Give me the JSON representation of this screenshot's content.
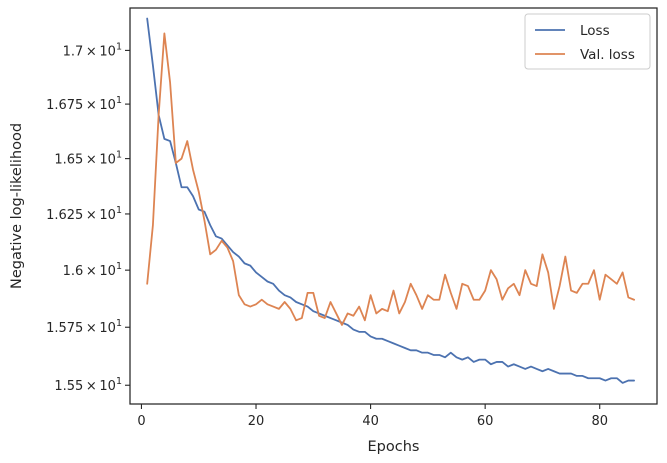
{
  "chart_data": {
    "type": "line",
    "xlabel": "Epochs",
    "ylabel": "Negative log-likelihood",
    "xlim": [
      -2,
      90
    ],
    "ylim": [
      15.42,
      17.2
    ],
    "y_scale": "log",
    "grid": false,
    "legend_position": "top-right",
    "x_ticks": [
      {
        "value": 0,
        "label": "0"
      },
      {
        "value": 20,
        "label": "20"
      },
      {
        "value": 40,
        "label": "40"
      },
      {
        "value": 60,
        "label": "60"
      },
      {
        "value": 80,
        "label": "80"
      }
    ],
    "y_ticks": [
      {
        "value": 15.5,
        "mantissa": "1.55",
        "times": "×",
        "base": "10",
        "exp": "1"
      },
      {
        "value": 15.75,
        "mantissa": "1.575",
        "times": "×",
        "base": "10",
        "exp": "1"
      },
      {
        "value": 16.0,
        "mantissa": "1.6",
        "times": "×",
        "base": "10",
        "exp": "1"
      },
      {
        "value": 16.25,
        "mantissa": "1.625",
        "times": "×",
        "base": "10",
        "exp": "1"
      },
      {
        "value": 16.5,
        "mantissa": "1.65",
        "times": "×",
        "base": "10",
        "exp": "1"
      },
      {
        "value": 16.75,
        "mantissa": "1.675",
        "times": "×",
        "base": "10",
        "exp": "1"
      },
      {
        "value": 17.0,
        "mantissa": "1.7",
        "times": "×",
        "base": "10",
        "exp": "1"
      }
    ],
    "x": [
      1,
      2,
      3,
      4,
      5,
      6,
      7,
      8,
      9,
      10,
      11,
      12,
      13,
      14,
      15,
      16,
      17,
      18,
      19,
      20,
      21,
      22,
      23,
      24,
      25,
      26,
      27,
      28,
      29,
      30,
      31,
      32,
      33,
      34,
      35,
      36,
      37,
      38,
      39,
      40,
      41,
      42,
      43,
      44,
      45,
      46,
      47,
      48,
      49,
      50,
      51,
      52,
      53,
      54,
      55,
      56,
      57,
      58,
      59,
      60,
      61,
      62,
      63,
      64,
      65,
      66,
      67,
      68,
      69,
      70,
      71,
      72,
      73,
      74,
      75,
      76,
      77,
      78,
      79,
      80,
      81,
      82,
      83,
      84,
      85,
      86
    ],
    "series": [
      {
        "name": "Loss",
        "color": "#4c72b0",
        "values": [
          17.15,
          16.93,
          16.7,
          16.59,
          16.58,
          16.48,
          16.37,
          16.37,
          16.33,
          16.27,
          16.26,
          16.2,
          16.15,
          16.14,
          16.11,
          16.08,
          16.06,
          16.03,
          16.02,
          15.99,
          15.97,
          15.95,
          15.94,
          15.91,
          15.89,
          15.88,
          15.86,
          15.85,
          15.84,
          15.82,
          15.81,
          15.8,
          15.79,
          15.78,
          15.77,
          15.76,
          15.74,
          15.73,
          15.73,
          15.71,
          15.7,
          15.7,
          15.69,
          15.68,
          15.67,
          15.66,
          15.65,
          15.65,
          15.64,
          15.64,
          15.63,
          15.63,
          15.62,
          15.64,
          15.62,
          15.61,
          15.62,
          15.6,
          15.61,
          15.61,
          15.59,
          15.6,
          15.6,
          15.58,
          15.59,
          15.58,
          15.57,
          15.58,
          15.57,
          15.56,
          15.57,
          15.56,
          15.55,
          15.55,
          15.55,
          15.54,
          15.54,
          15.53,
          15.53,
          15.53,
          15.52,
          15.53,
          15.53,
          15.51,
          15.52,
          15.52
        ]
      },
      {
        "name": "Val. loss",
        "color": "#dd8452",
        "values": [
          15.94,
          16.2,
          16.7,
          17.08,
          16.85,
          16.48,
          16.5,
          16.58,
          16.45,
          16.35,
          16.22,
          16.07,
          16.09,
          16.13,
          16.1,
          16.04,
          15.89,
          15.85,
          15.84,
          15.85,
          15.87,
          15.85,
          15.84,
          15.83,
          15.86,
          15.83,
          15.78,
          15.79,
          15.9,
          15.9,
          15.8,
          15.79,
          15.86,
          15.81,
          15.76,
          15.81,
          15.8,
          15.84,
          15.78,
          15.89,
          15.81,
          15.83,
          15.82,
          15.91,
          15.81,
          15.86,
          15.94,
          15.89,
          15.83,
          15.89,
          15.87,
          15.87,
          15.98,
          15.9,
          15.83,
          15.94,
          15.93,
          15.87,
          15.87,
          15.91,
          16.0,
          15.96,
          15.87,
          15.92,
          15.94,
          15.89,
          16.0,
          15.94,
          15.93,
          16.07,
          15.99,
          15.83,
          15.93,
          16.06,
          15.91,
          15.9,
          15.94,
          15.94,
          16.0,
          15.87,
          15.98,
          15.96,
          15.94,
          15.99,
          15.88,
          15.87
        ]
      }
    ]
  }
}
